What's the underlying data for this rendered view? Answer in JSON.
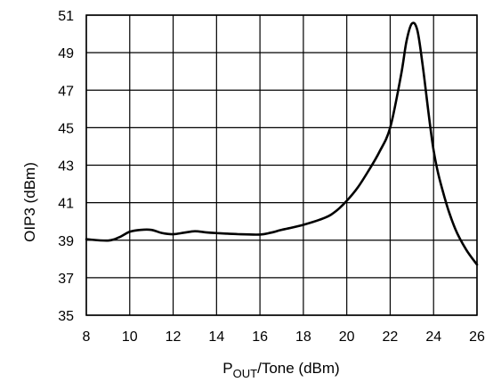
{
  "chart_data": {
    "type": "line",
    "title": "",
    "xlabel_main": "P",
    "xlabel_sub": "OUT",
    "xlabel_rest": "/Tone (dBm)",
    "ylabel": "OIP3 (dBm)",
    "xlim": [
      8,
      26
    ],
    "ylim": [
      35,
      51
    ],
    "x_ticks": [
      "8",
      "10",
      "12",
      "14",
      "16",
      "18",
      "20",
      "22",
      "24",
      "26"
    ],
    "y_ticks": [
      "35",
      "37",
      "39",
      "41",
      "43",
      "45",
      "47",
      "49",
      "51"
    ],
    "grid": true,
    "series": [
      {
        "x": [
          8,
          9,
          9.5,
          10,
          10.5,
          11,
          11.5,
          12,
          12.5,
          13,
          13.5,
          14,
          15,
          16,
          16.5,
          17,
          18,
          19,
          19.5,
          20,
          20.5,
          21,
          21.5,
          22,
          22.5,
          22.75,
          23,
          23.25,
          23.5,
          24,
          24.5,
          25,
          25.5,
          26
        ],
        "y": [
          39.05,
          38.98,
          39.15,
          39.45,
          39.55,
          39.55,
          39.38,
          39.32,
          39.4,
          39.48,
          39.42,
          39.38,
          39.32,
          39.3,
          39.4,
          39.55,
          39.82,
          40.2,
          40.55,
          41.1,
          41.8,
          42.7,
          43.7,
          45.0,
          47.8,
          49.6,
          50.55,
          50.2,
          48.3,
          43.8,
          41.3,
          39.6,
          38.5,
          37.7
        ]
      }
    ]
  }
}
